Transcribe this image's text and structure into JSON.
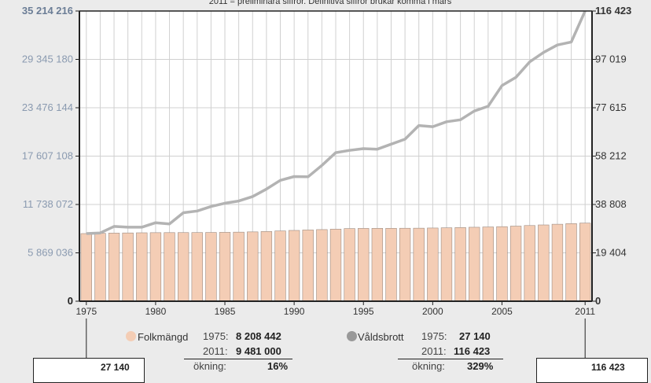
{
  "colors": {
    "background": "#ebebeb",
    "plot_bg": "#ffffff",
    "bar_fill": "#f4cdb5",
    "bar_stroke": "#9c8b81",
    "line": "#b3b3b3",
    "grid": "#d0d0d0",
    "axis": "#222222",
    "left_tick": "#8a9ab0",
    "left_top_tick": "#6b7d96",
    "right_tick": "#333333"
  },
  "chart_data": {
    "type": "bar",
    "subtitle": "2011 = preliminära siffror. Definitiva siffror brukar komma i mars",
    "x": [
      1975,
      1976,
      1977,
      1978,
      1979,
      1980,
      1981,
      1982,
      1983,
      1984,
      1985,
      1986,
      1987,
      1988,
      1989,
      1990,
      1991,
      1992,
      1993,
      1994,
      1995,
      1996,
      1997,
      1998,
      1999,
      2000,
      2001,
      2002,
      2003,
      2004,
      2005,
      2006,
      2007,
      2008,
      2009,
      2010,
      2011
    ],
    "x_tick_labels": [
      "1975",
      "1980",
      "1985",
      "1990",
      "1995",
      "2000",
      "2005",
      "2011"
    ],
    "x_tick_values": [
      1975,
      1980,
      1985,
      1990,
      1995,
      2000,
      2005,
      2011
    ],
    "left_axis": {
      "ylim": [
        0,
        35214216
      ],
      "tick_values": [
        0,
        5869036,
        11738072,
        17607108,
        23476144,
        29345180,
        35214216
      ],
      "tick_labels": [
        "0",
        "5 869 036",
        "11 738 072",
        "17 607 108",
        "23 476 144",
        "29 345 180",
        "35 214 216"
      ]
    },
    "right_axis": {
      "ylim": [
        0,
        116423
      ],
      "tick_values": [
        0,
        19404,
        38808,
        58212,
        77615,
        97019,
        116423
      ],
      "tick_labels": [
        "0",
        "19 404",
        "38 808",
        "58 212",
        "77 615",
        "97 019",
        "116 423"
      ]
    },
    "series": [
      {
        "name": "Folkmängd",
        "type": "bar",
        "axis": "left",
        "values": [
          8208442,
          8236179,
          8267116,
          8284437,
          8303010,
          8317937,
          8323033,
          8327484,
          8330573,
          8342621,
          8358139,
          8381515,
          8414083,
          8458888,
          8527036,
          8590630,
          8644119,
          8692013,
          8745109,
          8816381,
          8837496,
          8844499,
          8847625,
          8854322,
          8861426,
          8882792,
          8909128,
          8940788,
          8975670,
          9011392,
          9047752,
          9113257,
          9182927,
          9256347,
          9340682,
          9415570,
          9481000
        ]
      },
      {
        "name": "Våldsbrott",
        "type": "line",
        "axis": "right",
        "values": [
          27140,
          27400,
          30000,
          29700,
          29700,
          31500,
          31000,
          35500,
          36200,
          38000,
          39300,
          40200,
          42000,
          45000,
          48500,
          50000,
          49900,
          54500,
          59600,
          60500,
          61200,
          61000,
          63000,
          65000,
          70500,
          70000,
          72000,
          72800,
          76300,
          78200,
          86500,
          89800,
          96000,
          99800,
          102800,
          104000,
          116423
        ]
      }
    ]
  },
  "legend": {
    "pop": {
      "name": "Folkmängd",
      "row1_label": "1975:",
      "row1_value": "8 208 442",
      "row2_label": "2011:",
      "row2_value": "9 481 000",
      "row3_label": "ökning:",
      "row3_value": "16%"
    },
    "crime": {
      "name": "Våldsbrott",
      "row1_label": "1975:",
      "row1_value": "27 140",
      "row2_label": "2011:",
      "row2_value": "116 423",
      "row3_label": "ökning:",
      "row3_value": "329%"
    }
  },
  "callouts": {
    "left": "27 140",
    "right": "116 423"
  }
}
